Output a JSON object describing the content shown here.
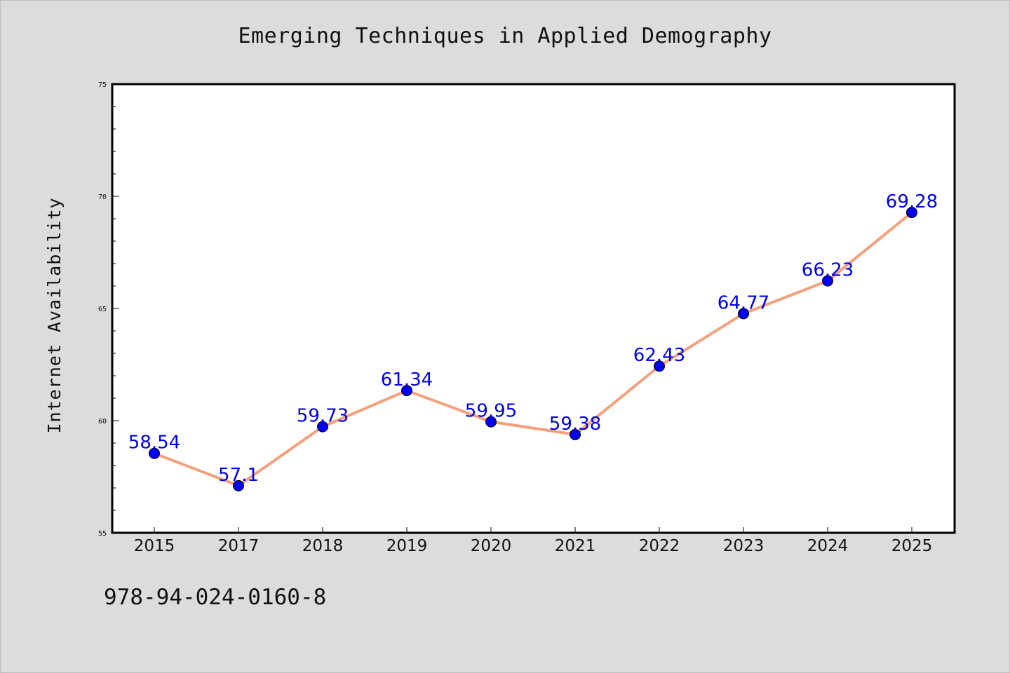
{
  "chart_data": {
    "type": "line",
    "title": "Emerging Techniques in Applied Demography",
    "xlabel": "",
    "ylabel": "Internet Availability",
    "categories": [
      "2015",
      "2017",
      "2018",
      "2019",
      "2020",
      "2021",
      "2022",
      "2023",
      "2024",
      "2025"
    ],
    "series": [
      {
        "values": [
          58.54,
          57.1,
          59.73,
          61.34,
          59.95,
          59.38,
          62.43,
          64.77,
          66.23,
          69.28
        ],
        "data_labels": [
          "58.54",
          "57.1",
          "59.73",
          "61.34",
          "59.95",
          "59.38",
          "62.43",
          "64.77",
          "66.23",
          "69.28"
        ],
        "line_color": "#f4a07c",
        "marker_color": "#0000ee",
        "label_color": "#0000ee"
      }
    ],
    "ylim": [
      55,
      75
    ],
    "yticks": [
      "55",
      "60",
      "65",
      "70",
      "75"
    ],
    "grid": false,
    "legend": "none"
  },
  "footer": {
    "isbn": "978-94-024-0160-8"
  },
  "colors": {
    "background": "#dcdcdc",
    "plot_background": "#ffffff",
    "axis": "#000000"
  }
}
